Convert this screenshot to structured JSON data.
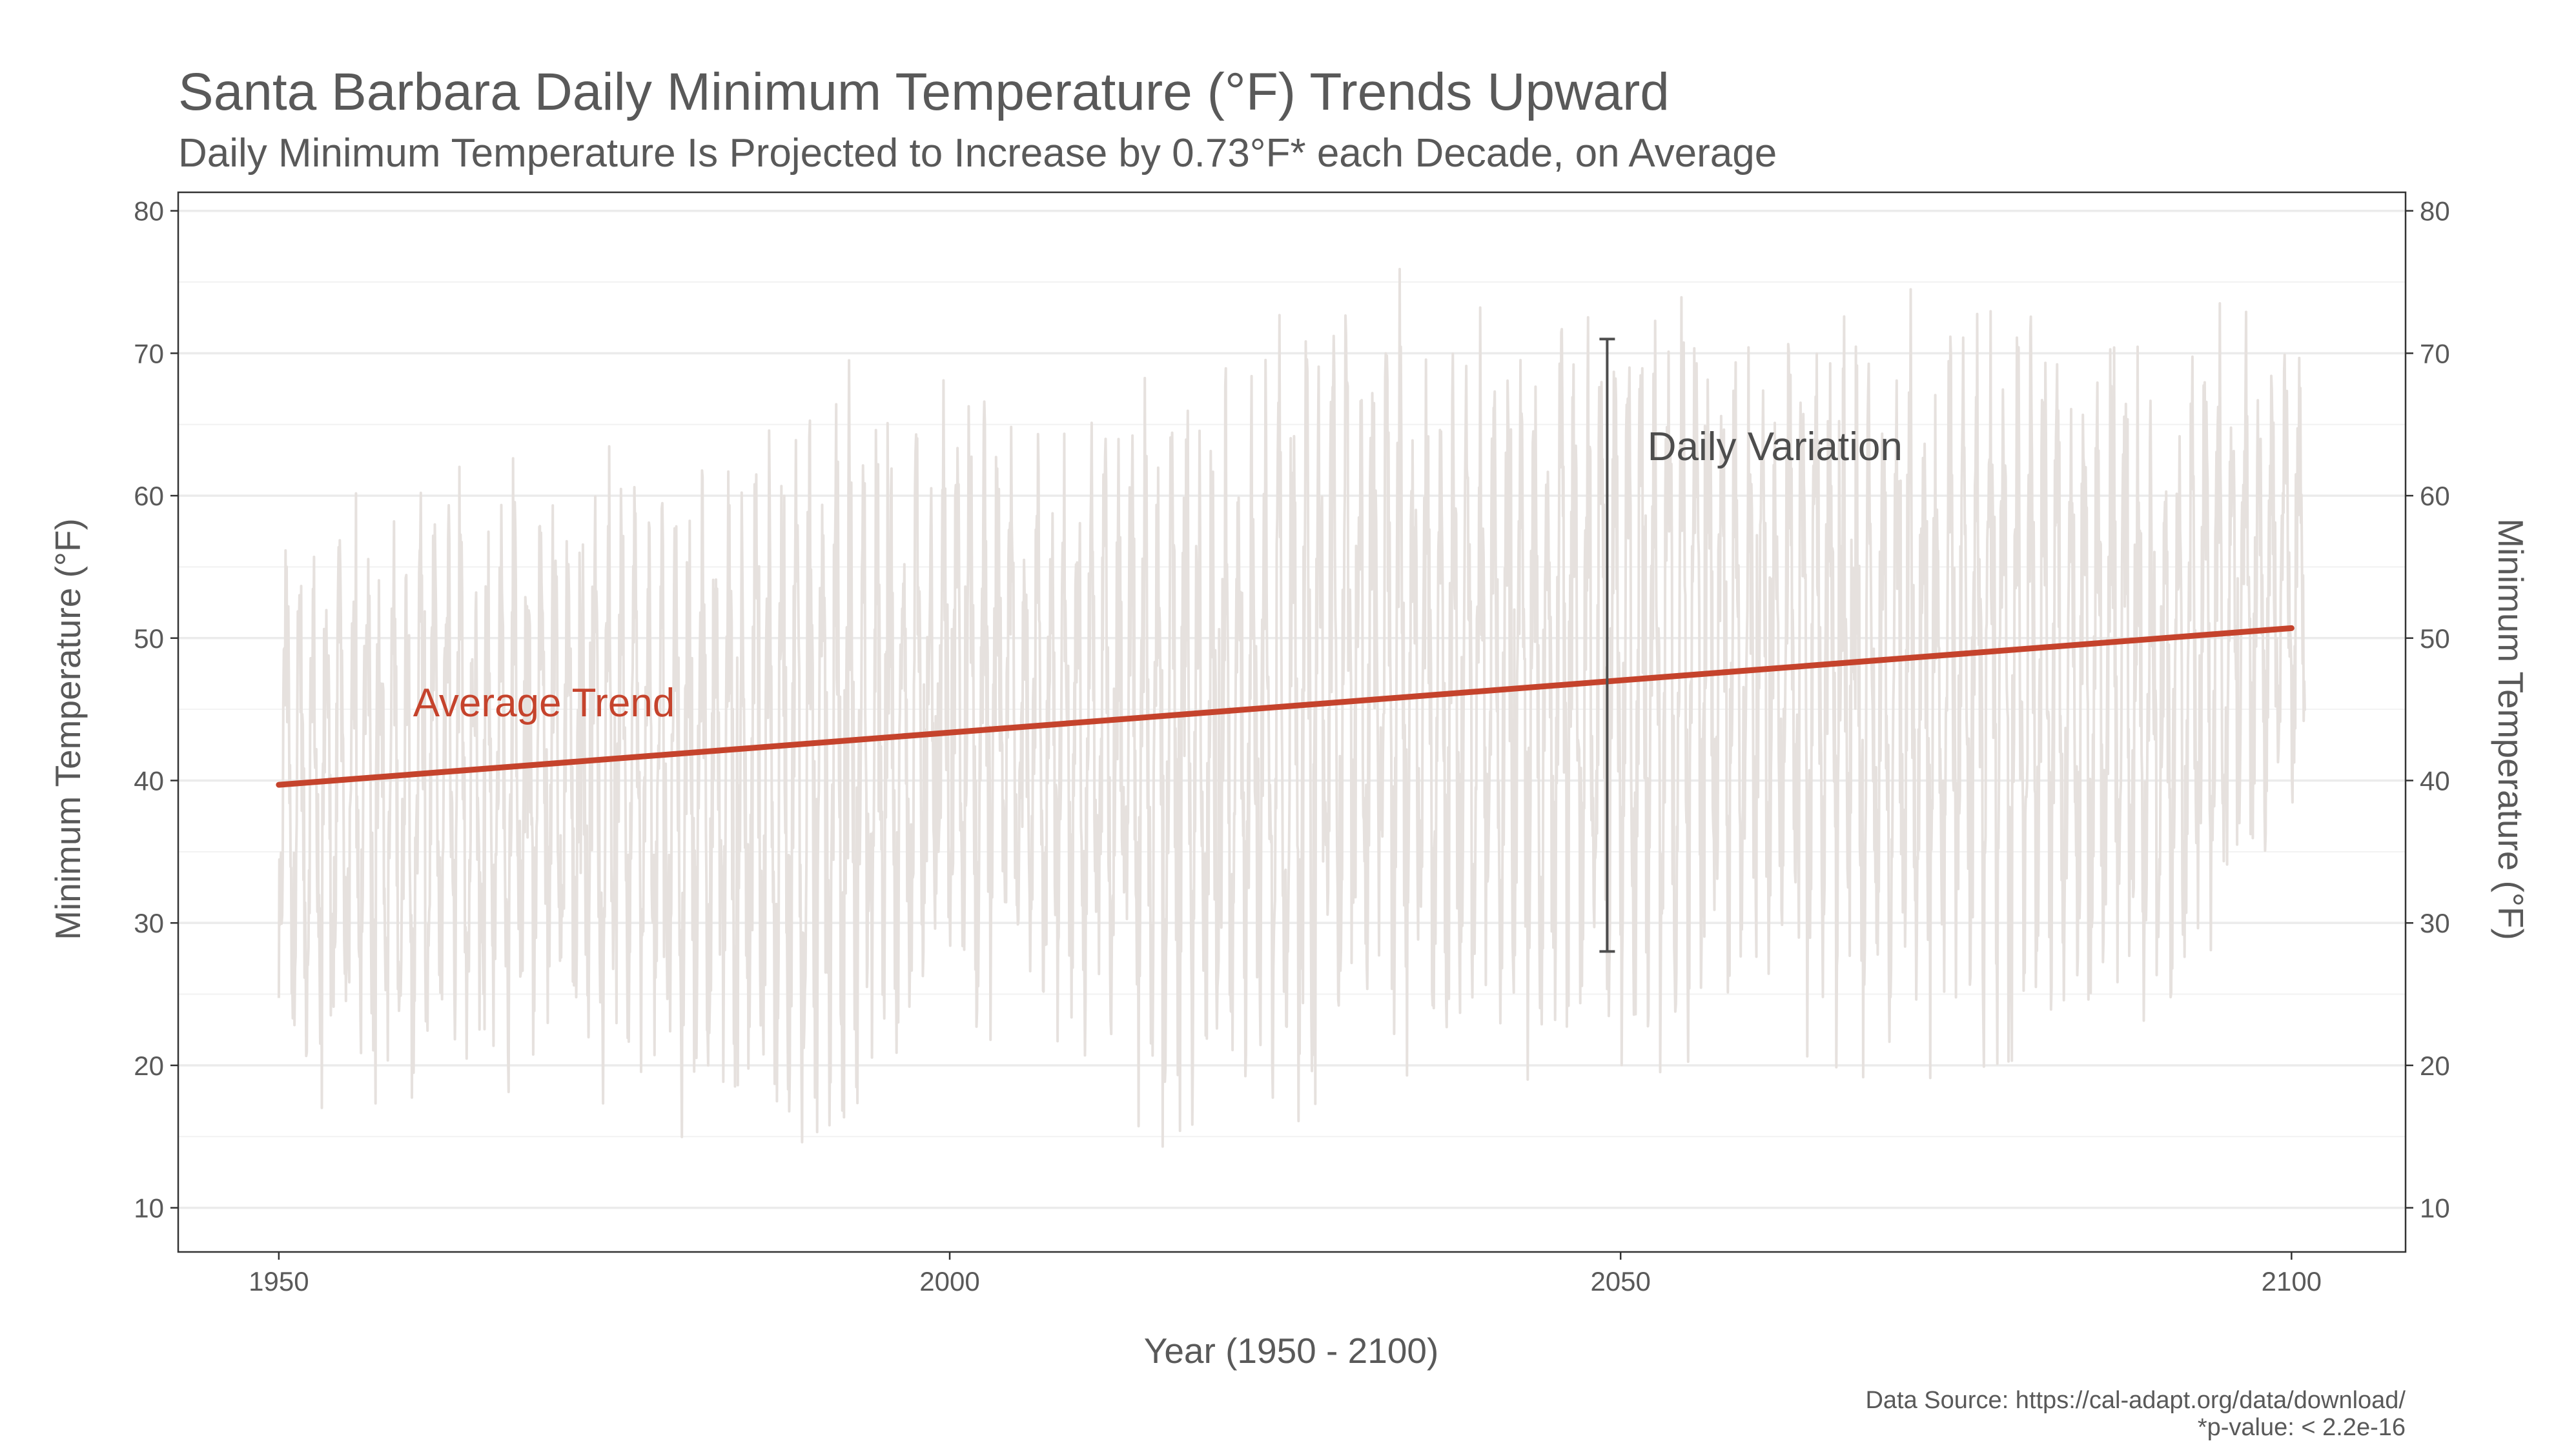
{
  "chart_data": {
    "type": "line",
    "title": "Santa Barbara Daily Minimum Temperature (°F) Trends Upward",
    "subtitle": "Daily Minimum Temperature Is Projected to Increase by 0.73°F* each Decade, on Average",
    "xlabel": "Year (1950 - 2100)",
    "ylabel": "Minimum Temperature (°F)",
    "ylabel_right": "Minimum Temperature (°F)",
    "xlim": [
      1942.5,
      2108.5
    ],
    "ylim": [
      6.9,
      81.3
    ],
    "x_ticks": [
      1950,
      2000,
      2050,
      2100
    ],
    "y_ticks": [
      10,
      20,
      30,
      40,
      50,
      60,
      70,
      80
    ],
    "grid": true,
    "colors": {
      "daily": "#e6e1de",
      "trend": "#c5432c",
      "errorbar": "#4d4d4d",
      "text": "#595959",
      "grid": "#ebebeb"
    },
    "series": [
      {
        "name": "Daily Variation",
        "x": [
          1950,
          1960,
          1970,
          1980,
          1990,
          2000,
          2010,
          2020,
          2030,
          2040,
          2050,
          2060,
          2070,
          2080,
          2090,
          2100
        ],
        "min": [
          17.5,
          16,
          19,
          15,
          10,
          18.5,
          19,
          11,
          19.5,
          19,
          18.5,
          22,
          18.5,
          20.5,
          18,
          34
        ],
        "max": [
          60,
          61.5,
          63,
          64,
          70,
          68,
          68,
          72,
          77.5,
          73,
          78,
          76,
          74,
          77,
          73.5,
          73.5
        ]
      },
      {
        "name": "Average Trend",
        "x": [
          1950,
          2100
        ],
        "y": [
          39.7,
          50.7
        ]
      }
    ],
    "annotations": [
      {
        "text": "Average Trend",
        "x": 1960,
        "y": 44.5
      },
      {
        "text": "Daily Variation",
        "x": 2052,
        "y": 62.5,
        "range": [
          28,
          71
        ],
        "at_x": 2049
      }
    ],
    "notes": [
      "Data Source: https://cal-adapt.org/data/download/",
      "*p-value: < 2.2e-16"
    ]
  }
}
